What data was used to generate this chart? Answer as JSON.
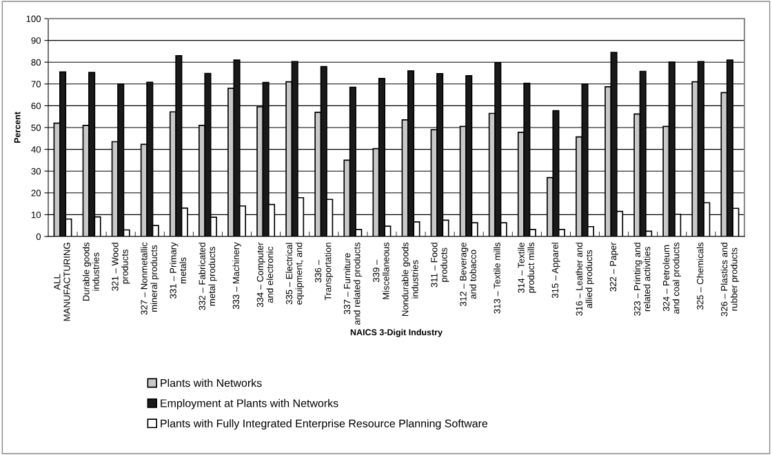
{
  "chart_data": {
    "type": "bar",
    "xlabel": "NAICS 3-Digit Industry",
    "ylabel": "Percent",
    "categories": [
      "ALL\nMANUFACTURING",
      "Durable goods\nindustries",
      "321 – Wood\nproducts",
      "327 – Nonmetallic\nmineral products",
      "331 – Primary\nmetals",
      "332 – Fabricated\nmetal products",
      "333 – Machinery",
      "334 – Computer\nand electronic",
      "335 – Electrical\nequipment, and",
      "336 –\nTransportation",
      "337 – Furniture\nand related products",
      "339 –\nMiscellaneous",
      "Nondurable goods\nindustries",
      "311 – Food\nproducts",
      "312 – Beverage\nand tobacco",
      "313 – Textile mills",
      "314 – Textile\nproduct mills",
      "315 – Apparel",
      "316 – Leather and\nallied products",
      "322 – Paper",
      "323 – Printing and\nrelated activities",
      "324 – Petroleum\nand coal products",
      "325 – Chemicals",
      "326 – Plastics and\nrubber products"
    ],
    "series": [
      {
        "name": "Plants with Networks",
        "color": "#c8c8c8",
        "values": [
          52,
          51,
          43.5,
          42.3,
          57.2,
          51,
          68,
          59.5,
          71,
          57,
          35,
          40.3,
          53.5,
          49,
          50.5,
          56.5,
          47.8,
          27,
          45.7,
          68.7,
          56.2,
          50.5,
          71,
          66
        ]
      },
      {
        "name": "Employment at Plants with Networks",
        "color": "#1a1a1a",
        "values": [
          75.5,
          75.3,
          70,
          70.8,
          83,
          74.8,
          81,
          70.7,
          80.3,
          78,
          68.5,
          72.5,
          76,
          74.7,
          73.8,
          79.8,
          70.3,
          57.7,
          70,
          84.5,
          75.8,
          80,
          80.3,
          81
        ]
      },
      {
        "name": "Plants with Fully Integrated Enterprise Resource Planning Software",
        "color": "#ffffff",
        "values": [
          8,
          9,
          3,
          5,
          13,
          8.8,
          14,
          14.7,
          17.8,
          17,
          3.2,
          4.7,
          6.7,
          7.5,
          6.3,
          6.3,
          3.2,
          3.2,
          4.5,
          11.5,
          2.4,
          10.2,
          15.5,
          12.9
        ]
      }
    ],
    "ylim": [
      0,
      100
    ],
    "yticks": [
      0,
      10,
      20,
      30,
      40,
      50,
      60,
      70,
      80,
      90,
      100
    ],
    "grid": "y",
    "legend": "bottom"
  }
}
